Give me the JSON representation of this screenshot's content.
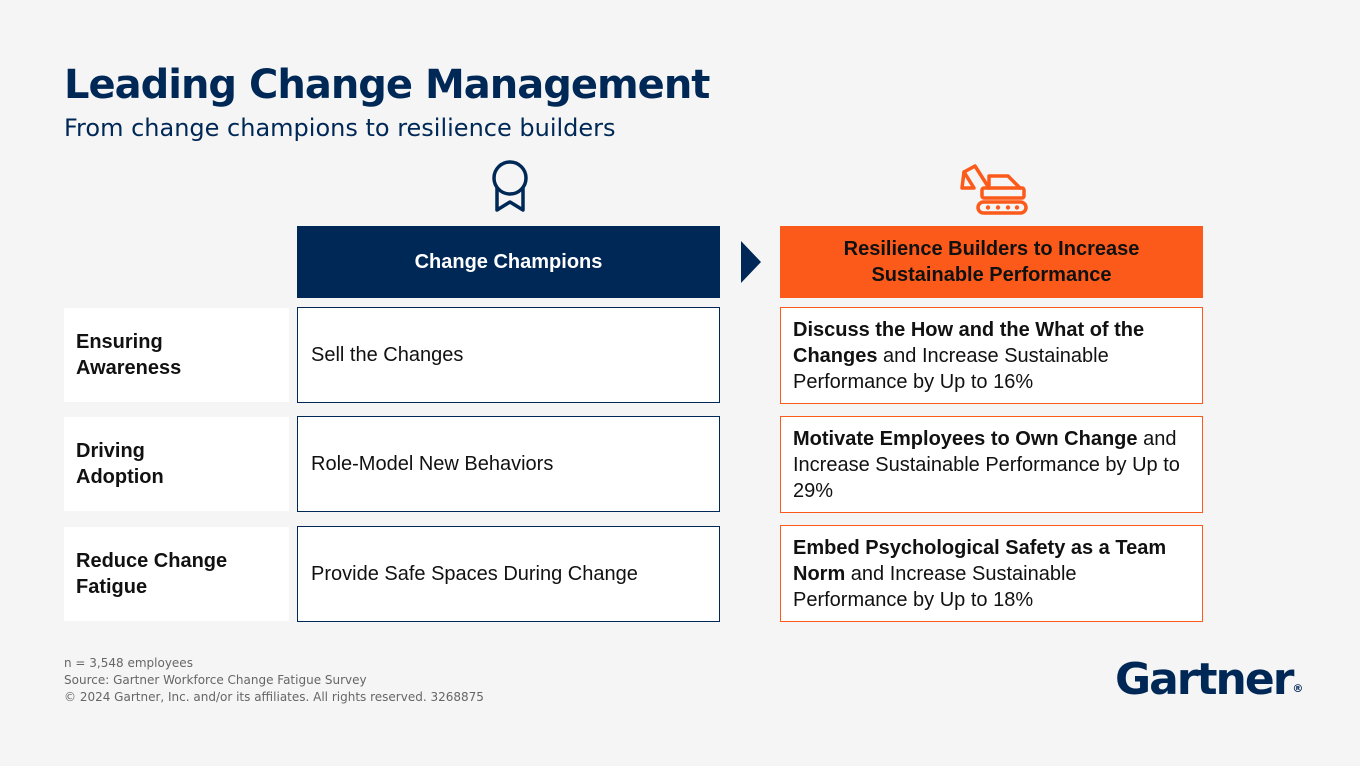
{
  "title": "Leading Change Management",
  "subtitle": "From change champions to resilience builders",
  "icons": {
    "left": "award-ribbon-icon",
    "right": "excavator-icon"
  },
  "colors": {
    "navy": "#002856",
    "orange": "#fc5a1a",
    "background": "#f5f5f5"
  },
  "columns": {
    "champions": "Change Champions",
    "resilience": "Resilience Builders to Increase Sustainable Performance"
  },
  "rows": [
    {
      "label": "Ensuring\nAwareness",
      "champion": "Sell the Changes",
      "resilience_bold": "Discuss the How and the What of the Changes",
      "resilience_rest": " and Increase Sustainable Performance by Up to 16%"
    },
    {
      "label": "Driving\nAdoption",
      "champion": "Role-Model New Behaviors",
      "resilience_bold": "Motivate Employees to Own Change",
      "resilience_rest": " and Increase Sustainable Performance by Up to 29%"
    },
    {
      "label": "Reduce Change\nFatigue",
      "champion": "Provide Safe Spaces During Change",
      "resilience_bold": "Embed Psychological Safety as a Team Norm",
      "resilience_rest": " and Increase Sustainable Performance by Up to 18%"
    }
  ],
  "footnotes": {
    "sample": "n = 3,548 employees",
    "source": "Source: Gartner Workforce Change Fatigue Survey",
    "copyright": "© 2024 Gartner, Inc. and/or its affiliates. All rights reserved. 3268875"
  },
  "logo": {
    "text": "Gartner",
    "mark": "®"
  }
}
